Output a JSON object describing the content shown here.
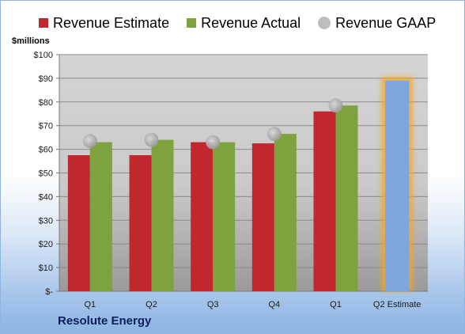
{
  "chart_data": {
    "type": "bar",
    "ylabel": "$millions",
    "ylim": [
      0,
      100
    ],
    "yticks": [
      "$-",
      "$10",
      "$20",
      "$30",
      "$40",
      "$50",
      "$60",
      "$70",
      "$80",
      "$90",
      "$100"
    ],
    "categories": [
      "Q1",
      "Q2",
      "Q3",
      "Q4",
      "Q1",
      "Q2 Estimate"
    ],
    "series": [
      {
        "name": "Revenue Estimate",
        "color": "#c0282d",
        "values": [
          57.5,
          57.5,
          63,
          62.5,
          76,
          null
        ]
      },
      {
        "name": "Revenue Actual",
        "color": "#7ea23e",
        "values": [
          63,
          64,
          63,
          66.5,
          78.5,
          null
        ]
      },
      {
        "name": "Revenue GAAP",
        "color": "#b4b4b4",
        "marker": "circle",
        "values": [
          63.5,
          64,
          63,
          66.5,
          78.5,
          null
        ]
      }
    ],
    "forecast": {
      "category": "Q2 Estimate",
      "value": 89,
      "color": "#7ea6dc",
      "glow": "#f5a623"
    },
    "grid": true,
    "legend": "top"
  },
  "footer": {
    "company": "Resolute Energy"
  }
}
